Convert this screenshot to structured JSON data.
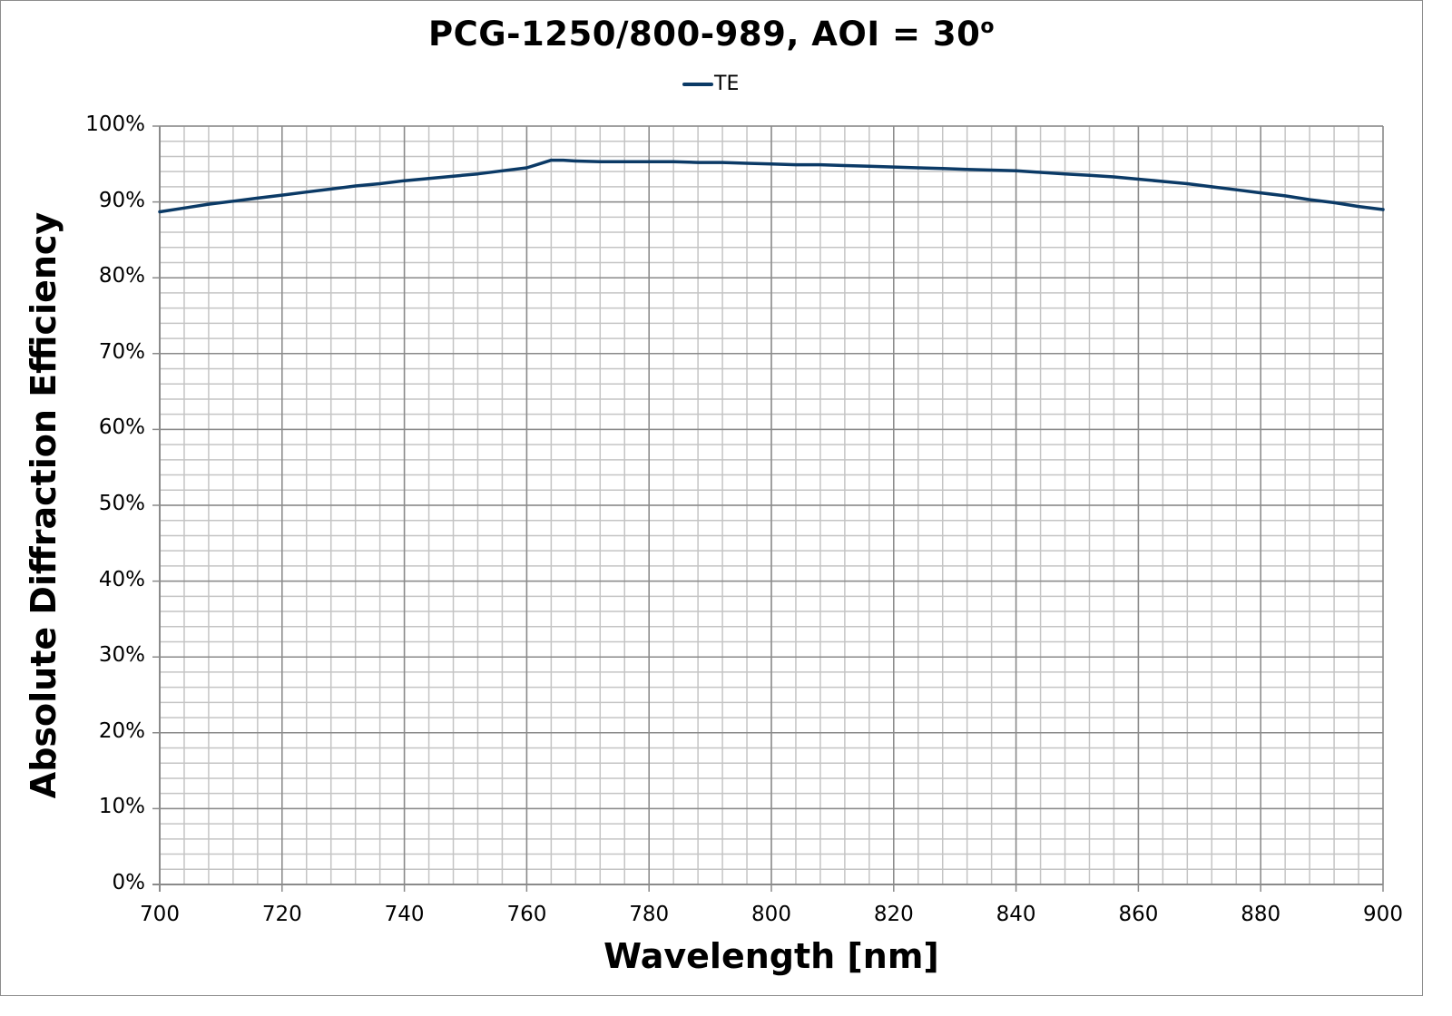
{
  "chart_data": {
    "type": "line",
    "title": "PCG-1250/800-989, AOI = 30",
    "title_superscript": "o",
    "xlabel": "Wavelength [nm]",
    "ylabel": "Absolute Diffraction Efficiency",
    "xlim": [
      700,
      900
    ],
    "ylim": [
      0,
      100
    ],
    "x_ticks": [
      "700",
      "720",
      "740",
      "760",
      "780",
      "800",
      "820",
      "840",
      "860",
      "880",
      "900"
    ],
    "y_ticks": [
      "0%",
      "10%",
      "20%",
      "30%",
      "40%",
      "50%",
      "60%",
      "70%",
      "80%",
      "90%",
      "100%"
    ],
    "grid": {
      "major": true,
      "minor": true,
      "x_minor_step": 4,
      "y_minor_step": 2
    },
    "legend": {
      "position": "top",
      "entries": [
        "TE"
      ]
    },
    "series": [
      {
        "name": "TE",
        "color": "#0b3a66",
        "x": [
          700,
          704,
          708,
          712,
          716,
          720,
          724,
          728,
          732,
          736,
          740,
          744,
          748,
          752,
          756,
          760,
          762,
          764,
          766,
          768,
          772,
          776,
          780,
          784,
          788,
          792,
          796,
          800,
          804,
          808,
          812,
          816,
          820,
          824,
          828,
          832,
          836,
          840,
          844,
          848,
          852,
          856,
          860,
          864,
          868,
          872,
          876,
          880,
          884,
          888,
          892,
          896,
          900
        ],
        "y": [
          88.7,
          89.2,
          89.7,
          90.1,
          90.5,
          90.9,
          91.3,
          91.7,
          92.1,
          92.4,
          92.8,
          93.1,
          93.4,
          93.7,
          94.1,
          94.5,
          95.0,
          95.5,
          95.5,
          95.4,
          95.3,
          95.3,
          95.3,
          95.3,
          95.2,
          95.2,
          95.1,
          95.0,
          94.9,
          94.9,
          94.8,
          94.7,
          94.6,
          94.5,
          94.4,
          94.3,
          94.2,
          94.1,
          93.9,
          93.7,
          93.5,
          93.3,
          93.0,
          92.7,
          92.4,
          92.0,
          91.6,
          91.2,
          90.8,
          90.3,
          89.9,
          89.4,
          89.0
        ]
      }
    ]
  },
  "legend": {
    "te_label": "TE"
  },
  "colors": {
    "series": "#0b3a66",
    "grid_major": "#8a8a8a",
    "grid_minor": "#c4c4c4",
    "frame": "#8c8c8c"
  }
}
